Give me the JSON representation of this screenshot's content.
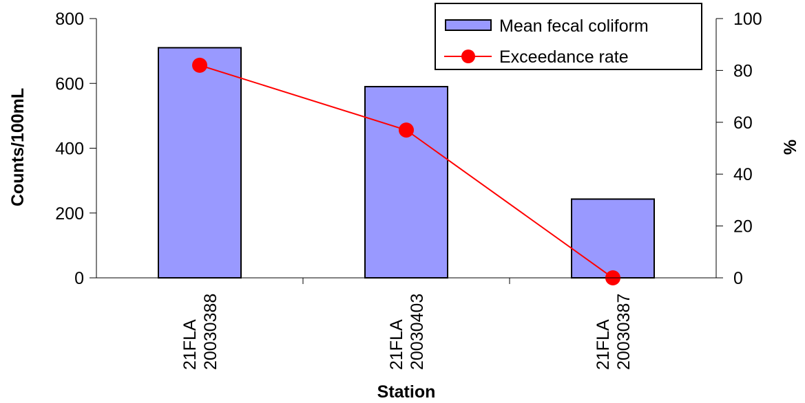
{
  "chart_data": {
    "type": "bar",
    "categories": [
      [
        "21FLA",
        "20030388"
      ],
      [
        "21FLA",
        "20030403"
      ],
      [
        "21FLA",
        "20030387"
      ]
    ],
    "series": [
      {
        "name": "Mean fecal coliform",
        "type": "bar",
        "axis": "left",
        "values": [
          710,
          590,
          243
        ],
        "color": "#9999ff"
      },
      {
        "name": "Exceedance rate",
        "type": "line",
        "axis": "right",
        "values": [
          82,
          57,
          0
        ],
        "color": "#ff0000"
      }
    ],
    "xlabel": "Station",
    "ylabel": "Counts/100mL",
    "y2label": "%",
    "ylim": [
      0,
      800
    ],
    "y2lim": [
      0,
      100
    ],
    "yticks": [
      0,
      200,
      400,
      600,
      800
    ],
    "y2ticks": [
      0,
      20,
      40,
      60,
      80,
      100
    ],
    "grid": false,
    "legend_position": "top-right"
  }
}
